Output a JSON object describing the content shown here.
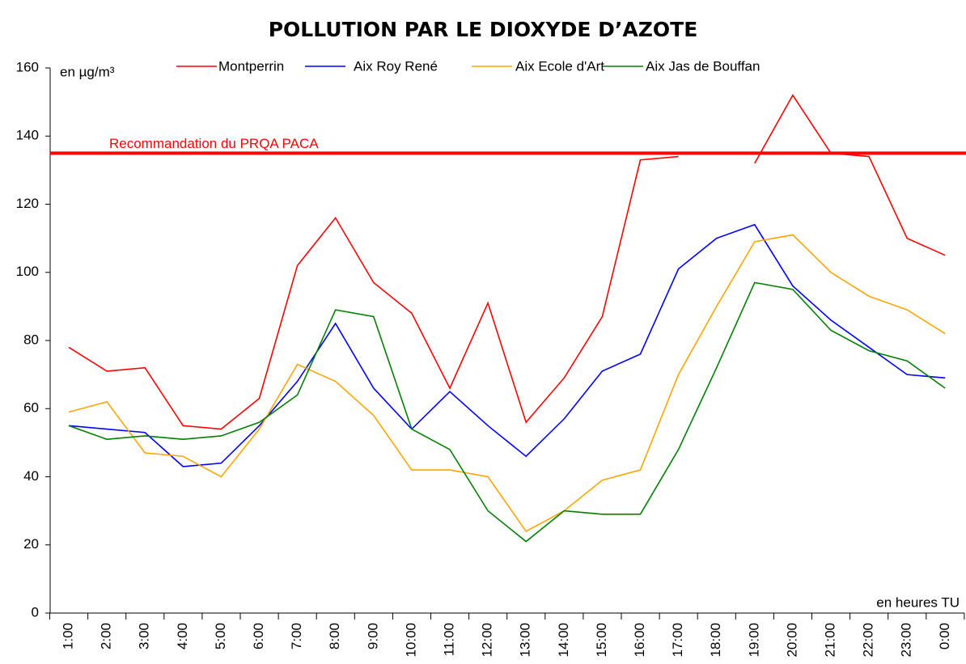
{
  "chart_data": {
    "type": "line",
    "title": "POLLUTION PAR LE DIOXYDE D’AZOTE",
    "y_label": "en µg/m³",
    "x_label": "en heures TU",
    "categories": [
      "1:00",
      "2:00",
      "3:00",
      "4:00",
      "5:00",
      "6:00",
      "7:00",
      "8:00",
      "9:00",
      "10:00",
      "11:00",
      "12:00",
      "13:00",
      "14:00",
      "15:00",
      "16:00",
      "17:00",
      "18:00",
      "19:00",
      "20:00",
      "21:00",
      "22:00",
      "23:00",
      "0:00"
    ],
    "series": [
      {
        "name": "Montperrin",
        "color": "#ff0000",
        "values": [
          78,
          71,
          72,
          55,
          54,
          63,
          102,
          116,
          97,
          88,
          66,
          91,
          56,
          69,
          87,
          133,
          134,
          null,
          132,
          152,
          135,
          134,
          110,
          105
        ]
      },
      {
        "name": "Aix Roy René",
        "color": "#0000ff",
        "values": [
          55,
          54,
          53,
          43,
          44,
          55,
          68,
          85,
          66,
          54,
          65,
          55,
          46,
          57,
          71,
          76,
          101,
          110,
          114,
          96,
          86,
          78,
          70,
          69
        ]
      },
      {
        "name": "Aix Ecole d'Art",
        "color": "#ffa500",
        "values": [
          59,
          62,
          47,
          46,
          40,
          54,
          73,
          68,
          58,
          42,
          42,
          40,
          24,
          30,
          39,
          42,
          70,
          90,
          109,
          111,
          100,
          93,
          89,
          82
        ]
      },
      {
        "name": "Aix Jas de Bouffan",
        "color": "#008000",
        "values": [
          55,
          51,
          52,
          51,
          52,
          56,
          64,
          89,
          87,
          54,
          48,
          30,
          21,
          30,
          29,
          29,
          48,
          72,
          97,
          95,
          83,
          77,
          74,
          66
        ]
      }
    ],
    "reference_line": {
      "label": "Recommandation du PRQA PACA",
      "value": 135,
      "color": "#ff0000"
    },
    "ylim": [
      0,
      160
    ],
    "yticks": [
      0,
      20,
      40,
      60,
      80,
      100,
      120,
      140,
      160
    ],
    "grid": false
  }
}
